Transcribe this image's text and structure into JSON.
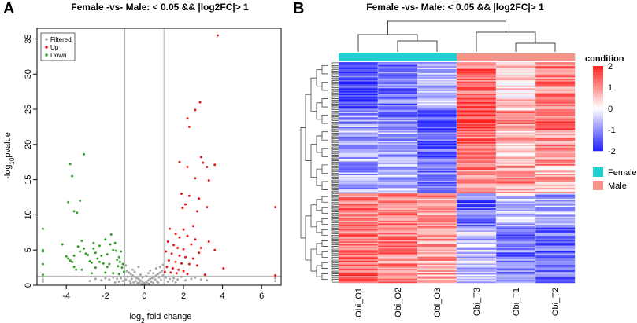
{
  "chart_data": [
    {
      "type": "scatter",
      "panel_letter": "A",
      "title": "Female -vs- Male: < 0.05 && |log2FC|> 1",
      "xlabel_main": "log",
      "xlabel_sub": "2",
      "xlabel_rest": " fold change",
      "ylabel_main": "-log",
      "ylabel_sub": "10",
      "ylabel_rest": "pvalue",
      "xlim": [
        -5.5,
        7
      ],
      "ylim": [
        0,
        36.5
      ],
      "x_ticks": [
        -4,
        -2,
        0,
        2,
        4,
        6
      ],
      "x_tick_labels": [
        "-4",
        "-2",
        "0",
        "2",
        "4",
        "6"
      ],
      "y_ticks": [
        0,
        5,
        10,
        15,
        20,
        25,
        30,
        35
      ],
      "y_tick_labels": [
        "0",
        "5",
        "10",
        "15",
        "20",
        "25",
        "30",
        "35"
      ],
      "vlines": [
        -1,
        1
      ],
      "hline": 1.3,
      "legend": [
        {
          "label": "Filtered",
          "color": "#a8a8a8"
        },
        {
          "label": "Up",
          "color": "#e31a1c"
        },
        {
          "label": "Down",
          "color": "#33a02c"
        }
      ],
      "colors": {
        "filtered": "#a8a8a8",
        "up": "#e31a1c",
        "down": "#33a02c",
        "guide": "#b0b0b0"
      },
      "series": [
        {
          "name": "Down",
          "points": [
            [
              -5.2,
              8
            ],
            [
              -5.2,
              5
            ],
            [
              -5.2,
              4.8
            ],
            [
              -5.2,
              3
            ],
            [
              -5.2,
              1.5
            ],
            [
              -3.8,
              17.2
            ],
            [
              -3.7,
              15.5
            ],
            [
              -3.3,
              12
            ],
            [
              -3.1,
              18.6
            ],
            [
              -3.9,
              11.8
            ],
            [
              -3.6,
              10.5
            ],
            [
              -3.45,
              10.3
            ],
            [
              -4.2,
              5.8
            ],
            [
              -4.0,
              4.1
            ],
            [
              -3.9,
              3.8
            ],
            [
              -3.8,
              3.5
            ],
            [
              -3.7,
              3.3
            ],
            [
              -3.6,
              2.6
            ],
            [
              -3.5,
              2.2
            ],
            [
              -3.4,
              5.5
            ],
            [
              -3.3,
              4.8
            ],
            [
              -3.2,
              6.3
            ],
            [
              -3.1,
              5.2
            ],
            [
              -3.0,
              4.5
            ],
            [
              -2.9,
              4.3
            ],
            [
              -2.8,
              3.4
            ],
            [
              -2.7,
              3.2
            ],
            [
              -2.6,
              5.2
            ],
            [
              -2.5,
              4.6
            ],
            [
              -2.4,
              3.8
            ],
            [
              -2.3,
              3.3
            ],
            [
              -2.2,
              4.2
            ],
            [
              -2.1,
              3.1
            ],
            [
              -2.0,
              6.5
            ],
            [
              -1.9,
              2.6
            ],
            [
              -1.8,
              3.0
            ],
            [
              -1.7,
              7.2
            ],
            [
              -1.6,
              5.0
            ],
            [
              -1.5,
              6.0
            ],
            [
              -1.45,
              4.9
            ],
            [
              -1.4,
              3.6
            ],
            [
              -1.35,
              2.7
            ],
            [
              -1.3,
              4.0
            ],
            [
              -1.25,
              3.3
            ],
            [
              -1.2,
              4.8
            ],
            [
              -1.15,
              2.5
            ],
            [
              -1.1,
              3.0
            ],
            [
              -1.05,
              1.9
            ],
            [
              -2.5,
              2.5
            ],
            [
              -2.7,
              1.7
            ],
            [
              -3.2,
              2.2
            ],
            [
              -2.0,
              1.8
            ],
            [
              -1.6,
              1.7
            ],
            [
              -1.3,
              1.6
            ],
            [
              -1.9,
              4.4
            ],
            [
              -2.3,
              5.6
            ],
            [
              -3.6,
              4.2
            ],
            [
              -2.6,
              6.0
            ],
            [
              -1.75,
              5.8
            ]
          ]
        },
        {
          "name": "Up",
          "points": [
            [
              3.75,
              35.5
            ],
            [
              2.85,
              26
            ],
            [
              2.6,
              24.9
            ],
            [
              2.2,
              23.7
            ],
            [
              2.3,
              22.5
            ],
            [
              2.9,
              18.2
            ],
            [
              3.0,
              17.4
            ],
            [
              3.6,
              17.1
            ],
            [
              1.8,
              17.5
            ],
            [
              3.2,
              16.8
            ],
            [
              2.2,
              16.8
            ],
            [
              2.6,
              15.2
            ],
            [
              3.3,
              14.9
            ],
            [
              1.9,
              13.0
            ],
            [
              2.3,
              12.7
            ],
            [
              2.8,
              12.3
            ],
            [
              2.1,
              11.5
            ],
            [
              3.2,
              11.1
            ],
            [
              1.95,
              11.0
            ],
            [
              2.7,
              10.5
            ],
            [
              1.3,
              8.0
            ],
            [
              2.0,
              7.9
            ],
            [
              2.5,
              8.4
            ],
            [
              1.6,
              7.3
            ],
            [
              1.8,
              6.8
            ],
            [
              2.2,
              7.0
            ],
            [
              2.6,
              6.5
            ],
            [
              3.3,
              6.2
            ],
            [
              1.2,
              6.2
            ],
            [
              1.5,
              5.7
            ],
            [
              1.7,
              5.3
            ],
            [
              2.0,
              5.1
            ],
            [
              2.4,
              5.8
            ],
            [
              2.9,
              5.3
            ],
            [
              3.6,
              5.0
            ],
            [
              1.1,
              4.8
            ],
            [
              1.4,
              4.5
            ],
            [
              1.8,
              4.2
            ],
            [
              2.1,
              4.0
            ],
            [
              2.5,
              3.8
            ],
            [
              2.8,
              4.6
            ],
            [
              1.25,
              3.5
            ],
            [
              1.6,
              3.3
            ],
            [
              1.9,
              3.1
            ],
            [
              2.3,
              3.0
            ],
            [
              2.7,
              2.8
            ],
            [
              1.15,
              2.6
            ],
            [
              1.45,
              2.4
            ],
            [
              1.75,
              2.2
            ],
            [
              2.0,
              2.0
            ],
            [
              1.05,
              1.9
            ],
            [
              1.35,
              1.8
            ],
            [
              1.65,
              1.7
            ],
            [
              2.2,
              1.6
            ],
            [
              3.1,
              1.5
            ],
            [
              4.05,
              2.4
            ],
            [
              6.7,
              11.1
            ],
            [
              6.7,
              1.4
            ]
          ]
        },
        {
          "name": "Filtered",
          "points": [
            [
              -0.9,
              2.0
            ],
            [
              -0.8,
              1.8
            ],
            [
              -0.7,
              1.6
            ],
            [
              -0.6,
              1.4
            ],
            [
              -0.5,
              1.2
            ],
            [
              -0.4,
              1.0
            ],
            [
              -0.3,
              0.9
            ],
            [
              -0.2,
              0.7
            ],
            [
              -0.1,
              0.5
            ],
            [
              0.0,
              0.3
            ],
            [
              0.1,
              0.5
            ],
            [
              0.2,
              0.7
            ],
            [
              0.3,
              0.9
            ],
            [
              0.4,
              1.0
            ],
            [
              0.5,
              1.2
            ],
            [
              0.6,
              1.4
            ],
            [
              0.7,
              1.6
            ],
            [
              0.8,
              1.8
            ],
            [
              0.9,
              2.0
            ],
            [
              -0.85,
              1.2
            ],
            [
              -0.65,
              0.9
            ],
            [
              -0.45,
              0.6
            ],
            [
              -0.25,
              0.4
            ],
            [
              -0.05,
              0.2
            ],
            [
              0.15,
              0.3
            ],
            [
              0.35,
              0.5
            ],
            [
              0.55,
              0.8
            ],
            [
              0.75,
              1.1
            ],
            [
              0.95,
              1.4
            ],
            [
              -0.95,
              0.8
            ],
            [
              -0.75,
              0.6
            ],
            [
              -0.55,
              0.4
            ],
            [
              -0.35,
              0.3
            ],
            [
              -0.15,
              0.15
            ],
            [
              0.05,
              0.1
            ],
            [
              0.25,
              0.2
            ],
            [
              0.45,
              0.35
            ],
            [
              0.65,
              0.55
            ],
            [
              0.85,
              0.75
            ],
            [
              -1.2,
              1.0
            ],
            [
              -1.4,
              0.9
            ],
            [
              -1.6,
              1.1
            ],
            [
              -1.8,
              0.8
            ],
            [
              -2.0,
              1.0
            ],
            [
              -2.2,
              0.7
            ],
            [
              -2.5,
              0.9
            ],
            [
              -1.1,
              0.6
            ],
            [
              -1.3,
              0.5
            ],
            [
              1.1,
              1.1
            ],
            [
              1.3,
              0.9
            ],
            [
              1.5,
              1.0
            ],
            [
              1.7,
              0.8
            ],
            [
              1.9,
              1.2
            ],
            [
              2.1,
              0.7
            ],
            [
              2.4,
              0.9
            ],
            [
              2.6,
              1.1
            ],
            [
              2.9,
              0.8
            ],
            [
              1.2,
              0.5
            ],
            [
              1.45,
              0.6
            ],
            [
              -0.6,
              2.2
            ],
            [
              0.6,
              2.4
            ],
            [
              -0.3,
              2.6
            ],
            [
              0.3,
              2.1
            ],
            [
              0.8,
              2.6
            ],
            [
              -0.95,
              2.8
            ],
            [
              0.95,
              2.9
            ],
            [
              -0.5,
              1.9
            ],
            [
              0.45,
              1.7
            ],
            [
              -5.2,
              1.2
            ],
            [
              -5.2,
              0.8
            ],
            [
              -5.2,
              0.5
            ],
            [
              6.7,
              1.0
            ],
            [
              6.7,
              0.6
            ],
            [
              -0.1,
              1.1
            ],
            [
              0.1,
              1.3
            ],
            [
              -0.2,
              1.5
            ],
            [
              0.2,
              1.7
            ],
            [
              -0.7,
              0.3
            ],
            [
              0.7,
              0.4
            ],
            [
              -1.5,
              0.4
            ],
            [
              1.6,
              0.4
            ],
            [
              -2.8,
              0.6
            ],
            [
              3.2,
              0.7
            ]
          ]
        }
      ]
    },
    {
      "type": "heatmap",
      "panel_letter": "B",
      "title": "Female -vs- Male: < 0.05 && |log2FC|> 1",
      "columns": [
        "Obi_O1",
        "Obi_O2",
        "Obi_O3",
        "Obi_T3",
        "Obi_T1",
        "Obi_T2"
      ],
      "condition": [
        "Female",
        "Female",
        "Female",
        "Male",
        "Male",
        "Male"
      ],
      "annotation_title": "condition",
      "annotation_legend": [
        {
          "label": "Female",
          "color": "#20d0d0"
        },
        {
          "label": "Male",
          "color": "#f4938a"
        }
      ],
      "color_scale": {
        "min": -2,
        "max": 2,
        "low": "#2020ff",
        "mid": "#ffffff",
        "high": "#ff2020"
      },
      "colorbar_ticks": [
        2,
        1,
        0,
        -1,
        -2
      ],
      "colorbar_tick_labels": [
        "2",
        "1",
        "0",
        "-1",
        "-2"
      ],
      "row_blocks": [
        {
          "rows": 35,
          "values": [
            -1.6,
            -1.2,
            -0.6,
            1.3,
            0.4,
            1.1
          ]
        },
        {
          "rows": 15,
          "values": [
            -0.9,
            -1.1,
            -1.5,
            1.7,
            1.0,
            1.3
          ]
        },
        {
          "rows": 25,
          "values": [
            -0.7,
            -0.8,
            -1.3,
            1.3,
            0.6,
            1.0
          ]
        },
        {
          "rows": 20,
          "values": [
            -0.8,
            -0.6,
            -1.1,
            1.0,
            0.9,
            0.7
          ]
        },
        {
          "rows": 25,
          "values": [
            1.2,
            1.1,
            0.8,
            -1.3,
            -0.5,
            -0.7
          ]
        },
        {
          "rows": 40,
          "values": [
            1.3,
            1.1,
            0.8,
            -0.5,
            -1.2,
            -1.3
          ]
        }
      ]
    }
  ]
}
